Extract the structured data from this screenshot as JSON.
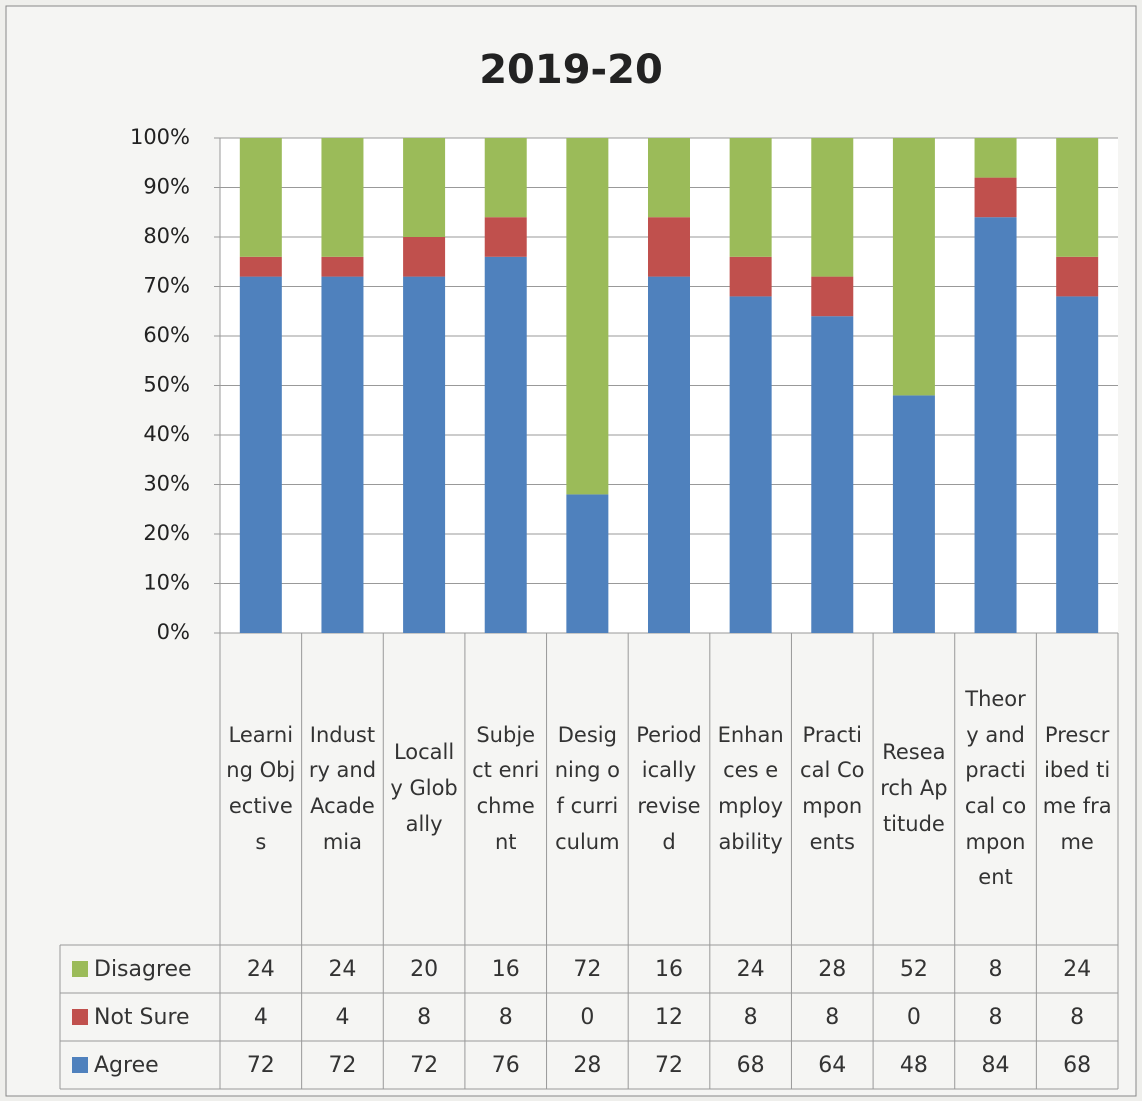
{
  "chart_data": {
    "type": "stacked_bar_100",
    "title": "2019-20",
    "categories": [
      "Learning Objectives",
      "Industry and Academia",
      "Locally Globally",
      "Subject enrichment",
      "Designing of curriculum",
      "Periodically revised",
      "Enhances employability",
      "Practical Components",
      "Research Aptitude",
      "Theory and practical component",
      "Prescribed time frame"
    ],
    "series": [
      {
        "name": "Agree",
        "color": "#4f81bd",
        "values": [
          72,
          72,
          72,
          76,
          28,
          72,
          68,
          64,
          48,
          84,
          68
        ]
      },
      {
        "name": "Not Sure",
        "color": "#c0504d",
        "values": [
          4,
          4,
          8,
          8,
          0,
          12,
          8,
          8,
          0,
          8,
          8
        ]
      },
      {
        "name": "Disagree",
        "color": "#9bbb59",
        "values": [
          24,
          24,
          20,
          16,
          72,
          16,
          24,
          28,
          52,
          8,
          24
        ]
      }
    ],
    "ylim": [
      0,
      100
    ],
    "yticks": [
      {
        "value": 0,
        "label": "0%"
      },
      {
        "value": 10,
        "label": "10%"
      },
      {
        "value": 20,
        "label": "20%"
      },
      {
        "value": 30,
        "label": "30%"
      },
      {
        "value": 40,
        "label": "40%"
      },
      {
        "value": 50,
        "label": "50%"
      },
      {
        "value": 60,
        "label": "60%"
      },
      {
        "value": 70,
        "label": "70%"
      },
      {
        "value": 80,
        "label": "80%"
      },
      {
        "value": 90,
        "label": "90%"
      },
      {
        "value": 100,
        "label": "100%"
      }
    ],
    "grid": true,
    "legend": "data-table"
  }
}
